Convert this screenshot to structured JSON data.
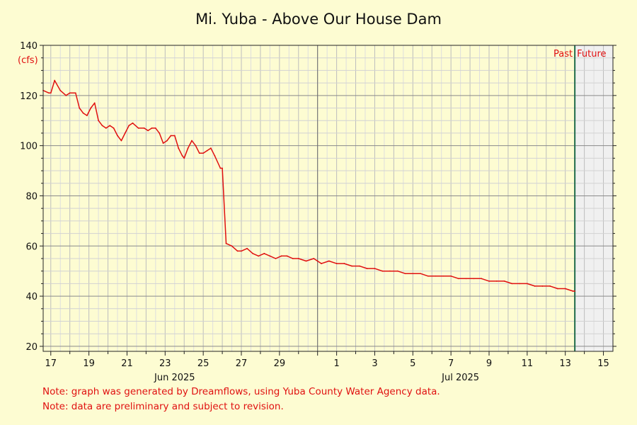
{
  "chart_data": {
    "type": "line",
    "title": "Mi. Yuba - Above Our House Dam",
    "ylabel": "(cfs)",
    "xlabel": "",
    "ylim": [
      18,
      140
    ],
    "xlim": [
      16.6,
      46.5
    ],
    "yticks": [
      20,
      40,
      60,
      80,
      100,
      120,
      140
    ],
    "xticks": [
      {
        "pos": 17,
        "label": "17"
      },
      {
        "pos": 19,
        "label": "19"
      },
      {
        "pos": 21,
        "label": "21"
      },
      {
        "pos": 23,
        "label": "23"
      },
      {
        "pos": 25,
        "label": "25"
      },
      {
        "pos": 27,
        "label": "27"
      },
      {
        "pos": 29,
        "label": "29"
      },
      {
        "pos": 32,
        "label": "1"
      },
      {
        "pos": 34,
        "label": "3"
      },
      {
        "pos": 36,
        "label": "5"
      },
      {
        "pos": 38,
        "label": "7"
      },
      {
        "pos": 40,
        "label": "9"
      },
      {
        "pos": 42,
        "label": "11"
      },
      {
        "pos": 44,
        "label": "13"
      },
      {
        "pos": 46,
        "label": "15"
      }
    ],
    "month_labels": [
      {
        "pos": 23.5,
        "label": "Jun 2025"
      },
      {
        "pos": 38.5,
        "label": "Jul 2025"
      }
    ],
    "month_boundary": 31,
    "now": 44.5,
    "past_label": "Past",
    "future_label": "Future",
    "grid": true,
    "colors": {
      "line": "#e01010",
      "now": "#1f6b4a",
      "future_bg": "#f0f0f0",
      "background": "#fdfcd2"
    },
    "series": [
      {
        "x": [
          16.6,
          16.9,
          17.0,
          17.2,
          17.5,
          17.8,
          18.0,
          18.3,
          18.5,
          18.7,
          18.9,
          19.1,
          19.3,
          19.5,
          19.7,
          19.9,
          20.1,
          20.3,
          20.5,
          20.7,
          20.9,
          21.1,
          21.3,
          21.6,
          21.9,
          22.1,
          22.3,
          22.5,
          22.7,
          22.9,
          23.1,
          23.3,
          23.5,
          23.7,
          23.9,
          24.0,
          24.2,
          24.4,
          24.6,
          24.8,
          25.0,
          25.2,
          25.4,
          25.6,
          25.9,
          26.0,
          26.2,
          26.5,
          26.8,
          27.0,
          27.3,
          27.6,
          27.9,
          28.2,
          28.5,
          28.8,
          29.1,
          29.4,
          29.7,
          30.0,
          30.4,
          30.8,
          31.2,
          31.6,
          32.0,
          32.4,
          32.8,
          33.2,
          33.6,
          34.0,
          34.4,
          34.8,
          35.2,
          35.6,
          36.0,
          36.4,
          36.8,
          37.2,
          37.6,
          38.0,
          38.4,
          38.8,
          39.2,
          39.6,
          40.0,
          40.4,
          40.8,
          41.2,
          41.6,
          42.0,
          42.4,
          42.8,
          43.2,
          43.6,
          44.0,
          44.4,
          44.5
        ],
        "values": [
          122,
          121,
          121,
          126,
          122,
          120,
          121,
          121,
          115,
          113,
          112,
          115,
          117,
          110,
          108,
          107,
          108,
          107,
          104,
          102,
          105,
          108,
          109,
          107,
          107,
          106,
          107,
          107,
          105,
          101,
          102,
          104,
          104,
          99,
          96,
          95,
          99,
          102,
          100,
          97,
          97,
          98,
          99,
          96,
          91,
          91,
          61,
          60,
          58,
          58,
          59,
          57,
          56,
          57,
          56,
          55,
          56,
          56,
          55,
          55,
          54,
          55,
          53,
          54,
          53,
          53,
          52,
          52,
          51,
          51,
          50,
          50,
          50,
          49,
          49,
          49,
          48,
          48,
          48,
          48,
          47,
          47,
          47,
          47,
          46,
          46,
          46,
          45,
          45,
          45,
          44,
          44,
          44,
          43,
          43,
          42,
          42
        ]
      }
    ]
  },
  "notes": [
    "Note: graph was generated by Dreamflows, using Yuba County Water Agency data.",
    "Note: data are preliminary and subject to revision."
  ]
}
